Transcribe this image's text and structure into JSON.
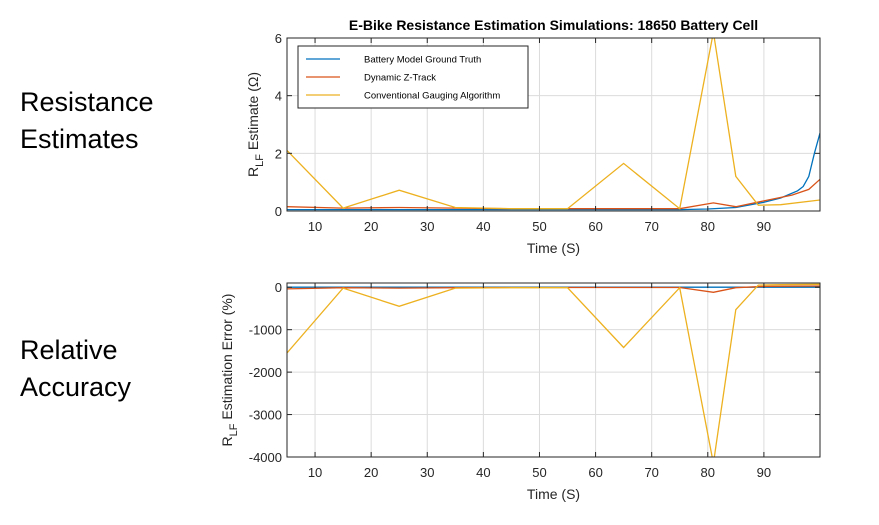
{
  "side_labels": {
    "top_line1": "Resistance",
    "top_line2": "Estimates",
    "bottom_line1": "Relative",
    "bottom_line2": "Accuracy"
  },
  "colors": {
    "ground_truth": "#0072BD",
    "ztrack": "#D95319",
    "conventional": "#EDB120",
    "axis": "#262626",
    "grid": "#dcdcdc"
  },
  "chart_data": [
    {
      "type": "line",
      "title": "E-Bike Resistance Estimation Simulations: 18650 Battery Cell",
      "xlabel": "Time (S)",
      "ylabel_main": "R",
      "ylabel_sub": "LF",
      "ylabel_rest": " Estimate (Ω)",
      "xlim": [
        5,
        100
      ],
      "ylim": [
        0,
        6
      ],
      "xticks": [
        10,
        20,
        30,
        40,
        50,
        60,
        70,
        80,
        90
      ],
      "yticks": [
        0,
        2,
        4,
        6
      ],
      "legend_position": "top-left",
      "series": [
        {
          "name": "Battery Model Ground Truth",
          "color_key": "ground_truth",
          "x": [
            5,
            15,
            25,
            35,
            45,
            55,
            65,
            75,
            80,
            85,
            90,
            93,
            96,
            97,
            98,
            99,
            100
          ],
          "y": [
            0.05,
            0.05,
            0.05,
            0.05,
            0.05,
            0.05,
            0.05,
            0.05,
            0.07,
            0.12,
            0.3,
            0.45,
            0.7,
            0.85,
            1.2,
            2.0,
            2.7
          ]
        },
        {
          "name": "Dynamic Z-Track",
          "color_key": "ztrack",
          "x": [
            5,
            15,
            25,
            35,
            45,
            55,
            65,
            75,
            81,
            85,
            90,
            95,
            98,
            100
          ],
          "y": [
            0.15,
            0.1,
            0.12,
            0.1,
            0.08,
            0.08,
            0.08,
            0.08,
            0.28,
            0.15,
            0.35,
            0.55,
            0.75,
            1.1
          ]
        },
        {
          "name": "Conventional Gauging Algorithm",
          "color_key": "conventional",
          "x": [
            5,
            15,
            25,
            35,
            45,
            55,
            65,
            75,
            81,
            85,
            89,
            93,
            100
          ],
          "y": [
            2.1,
            0.1,
            0.72,
            0.12,
            0.08,
            0.08,
            1.65,
            0.08,
            6.2,
            1.2,
            0.2,
            0.22,
            0.38
          ]
        }
      ]
    },
    {
      "type": "line",
      "title": "",
      "xlabel": "Time (S)",
      "ylabel_main": "R",
      "ylabel_sub": "LF",
      "ylabel_rest": " Estimation Error (%)",
      "xlim": [
        5,
        100
      ],
      "ylim": [
        -4000,
        100
      ],
      "xticks": [
        10,
        20,
        30,
        40,
        50,
        60,
        70,
        80,
        90
      ],
      "yticks": [
        0,
        -1000,
        -2000,
        -3000,
        -4000
      ],
      "series": [
        {
          "name": "Battery Model Ground Truth",
          "color_key": "ground_truth",
          "x": [
            5,
            100
          ],
          "y": [
            0,
            0
          ]
        },
        {
          "name": "Dynamic Z-Track",
          "color_key": "ztrack",
          "x": [
            5,
            15,
            25,
            35,
            45,
            55,
            65,
            75,
            81,
            85,
            90,
            100
          ],
          "y": [
            -40,
            -10,
            -20,
            -10,
            -5,
            -5,
            -5,
            -5,
            -120,
            -10,
            20,
            30
          ]
        },
        {
          "name": "Conventional Gauging Algorithm",
          "color_key": "conventional",
          "x": [
            5,
            15,
            25,
            35,
            45,
            55,
            65,
            75,
            81,
            85,
            89,
            93,
            100
          ],
          "y": [
            -1550,
            -20,
            -450,
            -20,
            -10,
            -10,
            -1420,
            -10,
            -4150,
            -530,
            50,
            60,
            70
          ]
        }
      ]
    }
  ]
}
